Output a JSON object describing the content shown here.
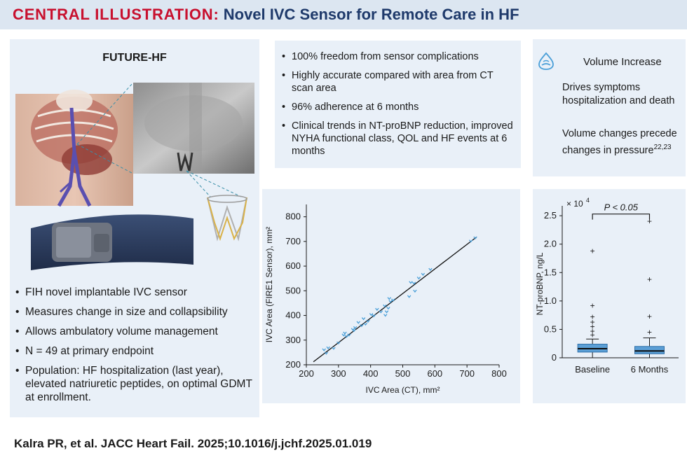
{
  "header": {
    "lead": "CENTRAL ILLUSTRATION:",
    "title": "Novel IVC Sensor for Remote Care in HF"
  },
  "left_panel": {
    "title": "FUTURE-HF",
    "bullets": [
      "FIH novel implantable IVC sensor",
      "Measures change in size and collapsibility",
      "Allows ambulatory volume management",
      "N = 49 at primary endpoint",
      "Population: HF hospitalization (last year), elevated natriuretic peptides, on optimal GDMT at enrollment."
    ]
  },
  "middle_panel": {
    "bullets": [
      "100% freedom from sensor complications",
      "Highly accurate compared with area from CT scan area",
      "96% adherence at 6 months",
      "Clinical trends in NT-proBNP reduction, improved NYHA functional class, QOL and HF events at 6 months"
    ]
  },
  "right_panel": {
    "icon": "volume-increase-icon",
    "heading": "Volume Increase",
    "point1": "Drives symptoms hospitalization and death",
    "point2_text": "Volume changes precede changes in pressure",
    "point2_ref": "22,23"
  },
  "citation": "Kalra PR, et al. JACC Heart Fail. 2025;10.1016/j.jchf.2025.01.019",
  "colors": {
    "accent_red": "#c8102e",
    "navy": "#1f3a6b",
    "panel_bg": "#e9f0f8",
    "header_bg": "#dce6f1",
    "point_blue": "#4a9fd8",
    "box_blue": "#5b9fd6"
  },
  "chart_data": [
    {
      "type": "scatter",
      "xlabel": "IVC Area (CT), mm²",
      "ylabel": "IVC Area (FIRE1 Sensor), mm²",
      "xlim": [
        200,
        800
      ],
      "ylim": [
        200,
        850
      ],
      "xticks": [
        200,
        300,
        400,
        500,
        600,
        700,
        800
      ],
      "yticks": [
        200,
        300,
        400,
        500,
        600,
        700,
        800
      ],
      "fit_line": {
        "x": [
          222,
          730
        ],
        "y": [
          212,
          718
        ]
      },
      "points": [
        [
          255,
          262
        ],
        [
          262,
          248
        ],
        [
          268,
          270
        ],
        [
          285,
          268
        ],
        [
          300,
          290
        ],
        [
          316,
          322
        ],
        [
          320,
          330
        ],
        [
          325,
          316
        ],
        [
          333,
          322
        ],
        [
          345,
          345
        ],
        [
          348,
          340
        ],
        [
          352,
          352
        ],
        [
          362,
          373
        ],
        [
          372,
          360
        ],
        [
          378,
          388
        ],
        [
          384,
          366
        ],
        [
          392,
          378
        ],
        [
          402,
          405
        ],
        [
          410,
          400
        ],
        [
          420,
          426
        ],
        [
          432,
          416
        ],
        [
          444,
          440
        ],
        [
          446,
          402
        ],
        [
          450,
          416
        ],
        [
          455,
          431
        ],
        [
          458,
          470
        ],
        [
          462,
          458
        ],
        [
          470,
          464
        ],
        [
          520,
          478
        ],
        [
          525,
          535
        ],
        [
          535,
          532
        ],
        [
          538,
          500
        ],
        [
          550,
          553
        ],
        [
          563,
          568
        ],
        [
          586,
          588
        ],
        [
          712,
          703
        ],
        [
          726,
          716
        ]
      ]
    },
    {
      "type": "box",
      "ylabel": "NT-proBNP, ng/L",
      "multiplier": "× 10",
      "multiplier_exp": "4",
      "categories": [
        "Baseline",
        "6 Months"
      ],
      "ylim": [
        0,
        2.6
      ],
      "yticks": [
        0,
        0.5,
        1.0,
        1.5,
        2.0,
        2.5
      ],
      "ytick_labels": [
        "0",
        "0.5",
        "1.0",
        "1.5",
        "2.0",
        "2.5"
      ],
      "significance": "P < 0.05",
      "boxes": [
        {
          "name": "Baseline",
          "whisker_low": 0.0,
          "q1": 0.1,
          "median": 0.16,
          "q3": 0.24,
          "whisker_high": 0.33,
          "outliers": [
            0.4,
            0.47,
            0.55,
            0.63,
            0.72,
            0.92,
            1.88
          ]
        },
        {
          "name": "6 Months",
          "whisker_low": 0.0,
          "q1": 0.07,
          "median": 0.12,
          "q3": 0.2,
          "whisker_high": 0.35,
          "outliers": [
            0.45,
            0.73,
            1.38,
            2.4
          ]
        }
      ]
    }
  ]
}
